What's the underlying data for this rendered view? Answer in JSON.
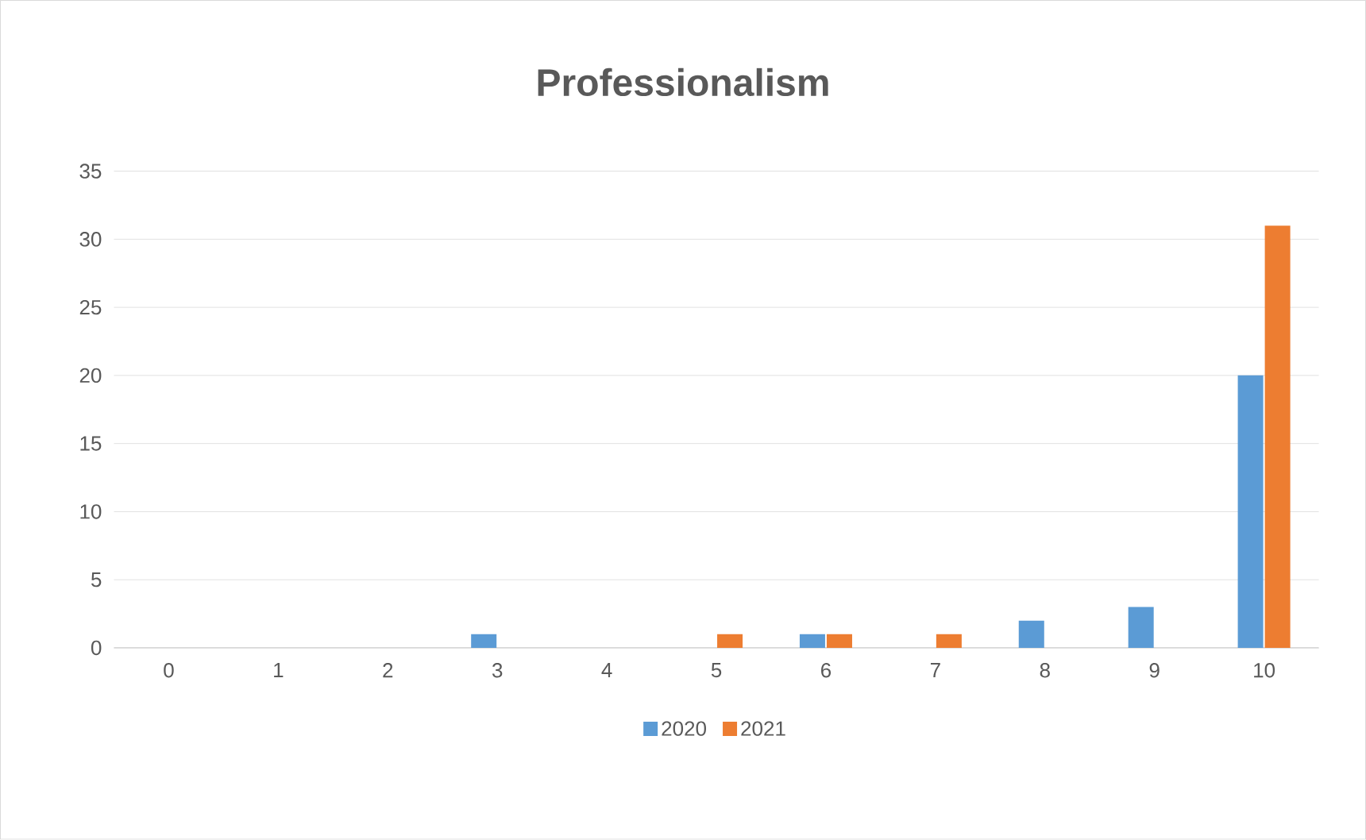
{
  "chart_data": {
    "type": "bar",
    "title": "Professionalism",
    "categories": [
      "0",
      "1",
      "2",
      "3",
      "4",
      "5",
      "6",
      "7",
      "8",
      "9",
      "10"
    ],
    "series": [
      {
        "name": "2020",
        "color": "#5b9bd5",
        "values": [
          0,
          0,
          0,
          1,
          0,
          0,
          1,
          0,
          2,
          3,
          20
        ]
      },
      {
        "name": "2021",
        "color": "#ed7d31",
        "values": [
          0,
          0,
          0,
          0,
          0,
          1,
          1,
          1,
          0,
          0,
          31
        ]
      }
    ],
    "ylim": [
      0,
      35
    ],
    "yticks": [
      0,
      5,
      10,
      15,
      20,
      25,
      30,
      35
    ],
    "grid": "y",
    "legend": "bottom"
  }
}
